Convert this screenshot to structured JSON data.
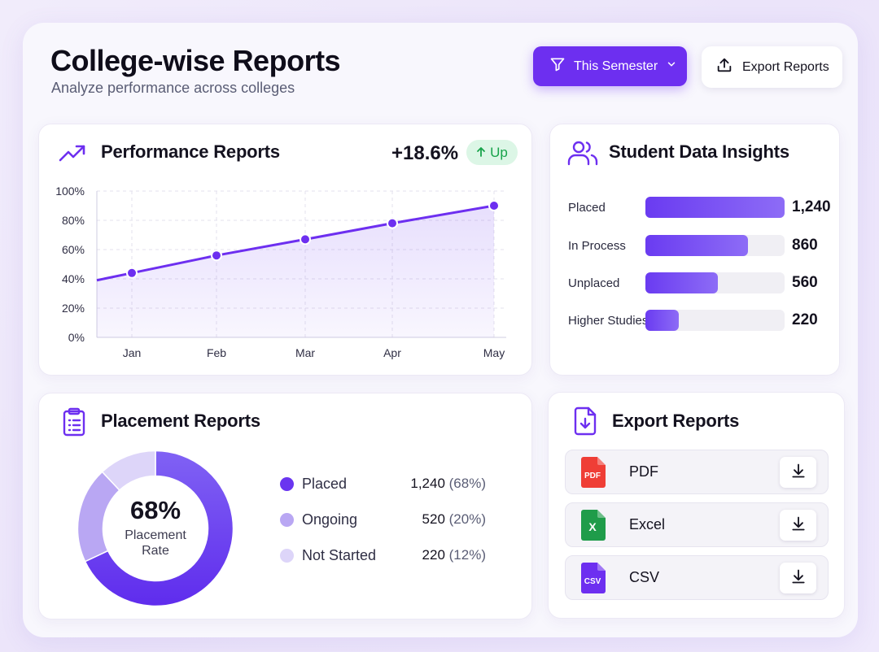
{
  "header": {
    "title": "College-wise Reports",
    "subtitle": "Analyze performance across colleges",
    "filter_button": "This Semester",
    "export_button": "Export Reports"
  },
  "performance": {
    "title": "Performance Reports",
    "kpi_value": "+18.6%",
    "kpi_badge": "Up",
    "accent_color": "#6d2ff0",
    "chart_data": {
      "type": "area",
      "categories": [
        "Jan",
        "Feb",
        "Mar",
        "Apr",
        "May"
      ],
      "values": [
        44,
        56,
        67,
        78,
        90
      ],
      "ylim": [
        0,
        100
      ],
      "y_ticks": [
        "0%",
        "20%",
        "40%",
        "60%",
        "80%",
        "100%"
      ],
      "grid": true,
      "title": "",
      "xlabel": "",
      "ylabel": ""
    }
  },
  "insights": {
    "title": "Student Data Insights",
    "rows": [
      {
        "label": "Placed",
        "value": "1,240",
        "fraction": 1.0
      },
      {
        "label": "In Process",
        "value": "860",
        "fraction": 0.735
      },
      {
        "label": "Unplaced",
        "value": "560",
        "fraction": 0.52
      },
      {
        "label": "Higher Studies",
        "value": "220",
        "fraction": 0.24
      }
    ]
  },
  "placement": {
    "title": "Placement Reports",
    "center_value": "68%",
    "center_label": "Placement Rate",
    "chart_data": {
      "type": "pie",
      "categories": [
        "Placed",
        "Ongoing",
        "Not Started"
      ],
      "values": [
        68,
        20,
        12
      ],
      "colors": [
        "#6a35f0",
        "#b9a7f3",
        "#ddd5f9"
      ]
    },
    "legend": [
      {
        "label": "Placed",
        "count": "1,240",
        "pct": "(68%)",
        "color": "#6a35f0"
      },
      {
        "label": "Ongoing",
        "count": "520",
        "pct": "(20%)",
        "color": "#b9a7f3"
      },
      {
        "label": "Not Started",
        "count": "220",
        "pct": "(12%)",
        "color": "#ddd5f9"
      }
    ]
  },
  "export": {
    "title": "Export Reports",
    "files": [
      {
        "name": "PDF",
        "icon": "pdf-file-icon",
        "tag": "PDF",
        "color": "#ef3e36"
      },
      {
        "name": "Excel",
        "icon": "excel-file-icon",
        "tag": "X",
        "color": "#1f9c4a"
      },
      {
        "name": "CSV",
        "icon": "csv-file-icon",
        "tag": "CSV",
        "color": "#6d2ff0"
      }
    ]
  }
}
